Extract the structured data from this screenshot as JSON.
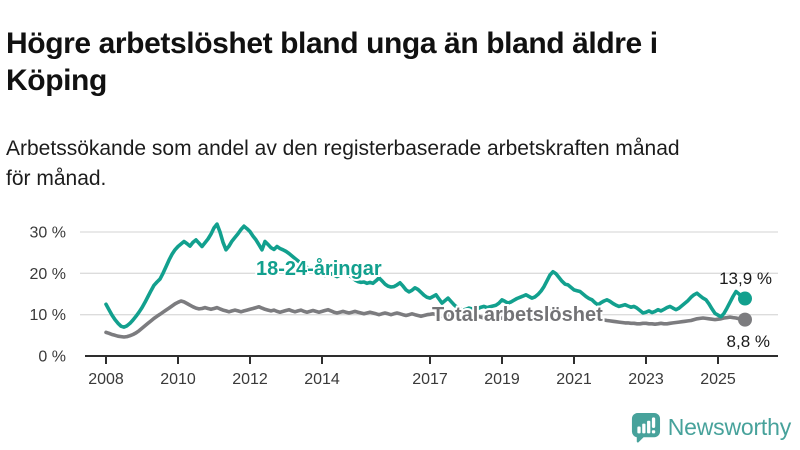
{
  "header": {
    "title_line1": "Högre arbetslöshet bland unga än bland äldre i",
    "title_line2": "Köping",
    "subtitle_line1": "Arbetssökande som andel av den registerbaserade arbetskraften månad",
    "subtitle_line2": "för månad."
  },
  "branding": {
    "logo_text": "Newsworthy",
    "logo_color": "#47a29b",
    "logo_icon": "speech-bubble-bar-chart-icon"
  },
  "chart_data": {
    "type": "line",
    "title": "Högre arbetslöshet bland unga än bland äldre i Köping",
    "subtitle": "Arbetssökande som andel av den registerbaserade arbetskraften månad för månad.",
    "unit": "%",
    "grid": "horizontal",
    "x_start_year": 2008,
    "x_end_label": "2025",
    "months_per_point": 1,
    "x_axis_ticks": [
      2008,
      2010,
      2012,
      2014,
      2017,
      2019,
      2021,
      2023,
      2025
    ],
    "y_axis_ticks": [
      0,
      10,
      20,
      30
    ],
    "y_tick_labels": [
      "0 %",
      "10 %",
      "20 %",
      "30 %"
    ],
    "ylim": [
      0,
      33
    ],
    "colors": {
      "youth": "#12a08e",
      "total": "#7c7c7f",
      "gridline": "#dcdcdc",
      "axis": "#2e2e2e"
    },
    "series": [
      {
        "name": "Total arbetslöshet",
        "color": "#7c7c7f",
        "label_color": "#737376",
        "end_label": "8,8 %",
        "end_value": 8.8,
        "values": [
          5.7,
          5.5,
          5.2,
          5.0,
          4.8,
          4.7,
          4.6,
          4.7,
          4.9,
          5.2,
          5.6,
          6.1,
          6.7,
          7.3,
          7.9,
          8.5,
          9.1,
          9.6,
          10.1,
          10.6,
          11.1,
          11.6,
          12.1,
          12.6,
          13.0,
          13.3,
          13.1,
          12.7,
          12.3,
          11.9,
          11.6,
          11.4,
          11.5,
          11.7,
          11.5,
          11.3,
          11.5,
          11.7,
          11.4,
          11.1,
          10.9,
          10.7,
          10.9,
          11.1,
          10.9,
          10.7,
          10.9,
          11.1,
          11.3,
          11.5,
          11.7,
          11.9,
          11.6,
          11.3,
          11.1,
          10.9,
          11.1,
          10.8,
          10.6,
          10.8,
          11.0,
          11.2,
          10.9,
          10.7,
          10.9,
          11.1,
          10.8,
          10.6,
          10.8,
          11.0,
          10.8,
          10.6,
          10.8,
          11.0,
          11.2,
          10.9,
          10.6,
          10.4,
          10.6,
          10.8,
          10.6,
          10.4,
          10.6,
          10.8,
          10.6,
          10.4,
          10.2,
          10.4,
          10.6,
          10.4,
          10.2,
          10.0,
          10.2,
          10.4,
          10.2,
          10.0,
          10.2,
          10.4,
          10.2,
          10.0,
          9.8,
          10.0,
          10.2,
          10.0,
          9.8,
          9.6,
          9.8,
          10.0,
          10.1,
          10.2,
          10.0,
          9.8,
          9.6,
          9.8,
          10.0,
          9.8,
          9.6,
          9.4,
          9.6,
          9.8,
          9.6,
          9.4,
          9.2,
          9.4,
          9.6,
          9.4,
          9.2,
          9.0,
          9.2,
          9.4,
          9.2,
          9.0,
          9.2,
          9.4,
          9.2,
          9.0,
          9.2,
          9.4,
          9.5,
          9.6,
          9.7,
          9.8,
          9.9,
          10.0,
          10.2,
          10.4,
          10.6,
          10.8,
          11.0,
          10.9,
          10.8,
          10.6,
          10.4,
          10.2,
          10.0,
          9.9,
          9.8,
          9.7,
          9.6,
          9.5,
          9.4,
          9.2,
          9.1,
          9.0,
          8.9,
          8.8,
          8.7,
          8.6,
          8.5,
          8.4,
          8.3,
          8.2,
          8.1,
          8.0,
          8.0,
          7.9,
          7.9,
          7.8,
          7.8,
          7.9,
          7.9,
          7.8,
          7.8,
          7.7,
          7.8,
          7.9,
          7.8,
          7.8,
          7.9,
          8.0,
          8.1,
          8.2,
          8.3,
          8.4,
          8.5,
          8.6,
          8.8,
          9.0,
          9.1,
          9.2,
          9.1,
          9.0,
          8.9,
          8.8,
          8.9,
          9.0,
          9.2,
          9.3,
          9.4,
          9.3,
          9.2,
          9.0,
          8.9,
          8.8
        ]
      },
      {
        "name": "18-24-åringar",
        "color": "#12a08e",
        "label_color": "#12a08e",
        "end_label": "13,9 %",
        "end_value": 13.9,
        "values": [
          12.5,
          11.2,
          9.9,
          8.8,
          7.9,
          7.2,
          7.0,
          7.3,
          7.9,
          8.7,
          9.6,
          10.6,
          11.7,
          13.0,
          14.4,
          15.8,
          17.1,
          17.9,
          18.6,
          20.0,
          21.6,
          23.2,
          24.6,
          25.7,
          26.5,
          27.1,
          27.7,
          27.2,
          26.6,
          27.5,
          28.1,
          27.3,
          26.5,
          27.4,
          28.3,
          29.5,
          31.0,
          31.9,
          30.0,
          27.5,
          25.7,
          26.6,
          27.8,
          28.7,
          29.6,
          30.6,
          31.4,
          30.8,
          30.1,
          29.0,
          28.1,
          26.9,
          25.7,
          27.7,
          27.0,
          26.2,
          25.8,
          26.5,
          26.0,
          25.7,
          25.3,
          24.8,
          24.2,
          23.6,
          23.0,
          22.4,
          21.9,
          21.4,
          20.9,
          20.5,
          20.1,
          19.9,
          19.8,
          19.5,
          19.7,
          19.9,
          19.6,
          19.2,
          19.6,
          20.0,
          20.1,
          19.6,
          19.0,
          18.4,
          18.0,
          17.8,
          17.9,
          17.6,
          17.8,
          17.6,
          18.2,
          18.9,
          18.2,
          17.4,
          16.9,
          16.7,
          16.8,
          17.2,
          17.7,
          16.9,
          16.0,
          15.5,
          15.9,
          16.5,
          16.1,
          15.4,
          14.7,
          14.2,
          14.0,
          14.4,
          14.8,
          13.8,
          12.8,
          13.4,
          14.0,
          13.2,
          12.4,
          11.8,
          11.3,
          11.1,
          11.3,
          11.6,
          11.4,
          11.2,
          11.5,
          11.8,
          12.0,
          11.7,
          11.9,
          12.1,
          12.3,
          12.8,
          13.6,
          13.2,
          12.8,
          13.1,
          13.5,
          13.9,
          14.2,
          14.5,
          14.8,
          14.4,
          14.0,
          14.3,
          14.9,
          15.7,
          16.8,
          18.2,
          19.6,
          20.4,
          19.9,
          19.0,
          18.1,
          17.4,
          17.2,
          16.6,
          16.0,
          15.8,
          15.6,
          15.0,
          14.4,
          13.9,
          13.6,
          12.9,
          12.4,
          12.9,
          13.3,
          13.6,
          13.2,
          12.7,
          12.3,
          12.0,
          12.2,
          12.4,
          12.1,
          11.8,
          12.0,
          11.6,
          11.0,
          10.4,
          10.6,
          10.9,
          10.5,
          10.8,
          11.2,
          10.9,
          11.3,
          11.7,
          12.0,
          11.6,
          11.2,
          11.6,
          12.2,
          12.8,
          13.4,
          14.2,
          14.8,
          15.2,
          14.6,
          14.0,
          13.6,
          12.6,
          11.4,
          10.3,
          9.9,
          9.5,
          10.3,
          11.6,
          13.0,
          14.4,
          15.6,
          15.0,
          14.2,
          13.9
        ]
      }
    ]
  }
}
